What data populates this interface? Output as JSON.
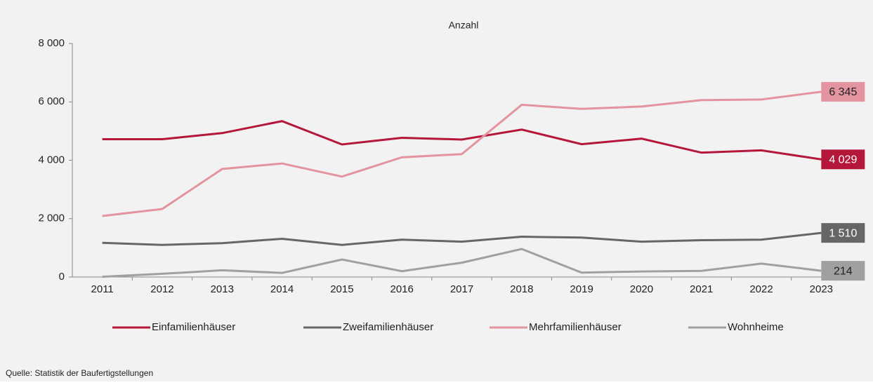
{
  "chart_data": {
    "type": "line",
    "title": "Anzahl",
    "source": "Quelle: Statistik der Baufertigstellungen",
    "categories": [
      "2011",
      "2012",
      "2013",
      "2014",
      "2015",
      "2016",
      "2017",
      "2018",
      "2019",
      "2020",
      "2021",
      "2022",
      "2023"
    ],
    "series": [
      {
        "name": "Einfamilienhäuser",
        "color": "#b5173b",
        "values": [
          4720,
          4720,
          4930,
          5340,
          4540,
          4770,
          4710,
          5050,
          4550,
          4740,
          4260,
          4340,
          4029
        ],
        "value_labels": [
          null,
          null,
          null,
          null,
          null,
          null,
          null,
          null,
          null,
          null,
          null,
          null,
          "4 029"
        ]
      },
      {
        "name": "Zweifamilienhäuser",
        "color": "#666666",
        "values": [
          1170,
          1100,
          1160,
          1310,
          1100,
          1280,
          1210,
          1380,
          1350,
          1210,
          1260,
          1280,
          1510
        ],
        "value_labels": [
          null,
          null,
          null,
          null,
          null,
          null,
          null,
          null,
          null,
          null,
          null,
          null,
          "1 510"
        ]
      },
      {
        "name": "Mehrfamilienhäuser",
        "color": "#e3949f",
        "values": [
          2090,
          2330,
          3700,
          3890,
          3440,
          4100,
          4210,
          5900,
          5760,
          5840,
          6060,
          6080,
          6345
        ],
        "value_labels": [
          null,
          null,
          null,
          null,
          null,
          null,
          null,
          null,
          null,
          null,
          null,
          null,
          "6 345"
        ]
      },
      {
        "name": "Wohnheime",
        "color": "#a0a0a0",
        "values": [
          10,
          110,
          230,
          140,
          600,
          200,
          490,
          960,
          150,
          190,
          210,
          460,
          214
        ],
        "value_labels": [
          null,
          null,
          null,
          null,
          null,
          null,
          null,
          null,
          null,
          null,
          null,
          null,
          "214"
        ]
      }
    ],
    "ylim": [
      0,
      8000
    ],
    "yticks": [
      0,
      {
        "value": 2000,
        "label": "2 000"
      },
      {
        "value": 4000,
        "label": "4 000"
      },
      {
        "value": 6000,
        "label": "6 000"
      },
      {
        "value": 8000,
        "label": "8 000"
      }
    ],
    "legend": "bottom"
  }
}
